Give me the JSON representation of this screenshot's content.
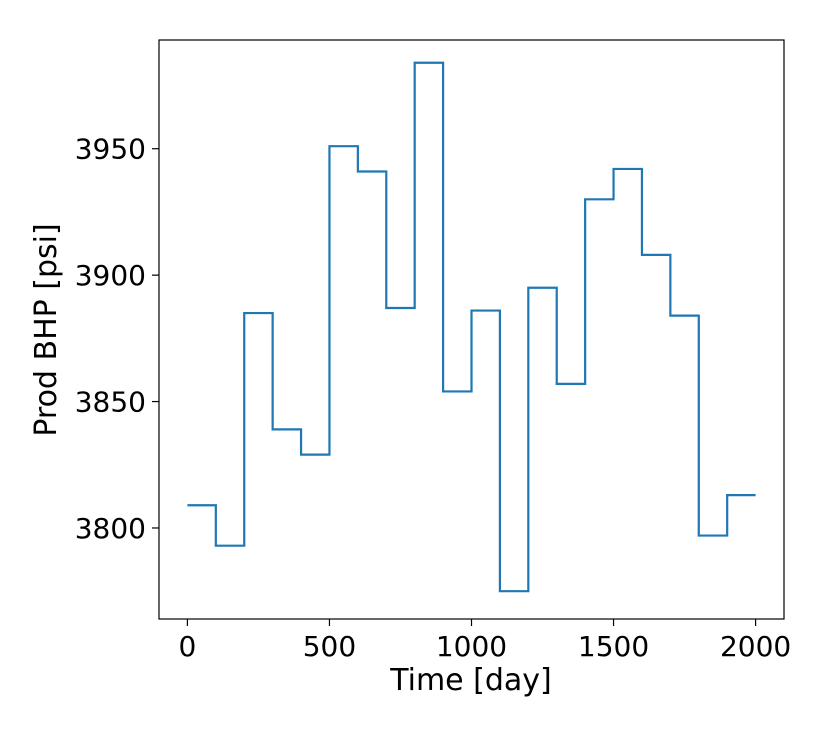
{
  "chart_data": {
    "type": "line",
    "drawstyle": "steps-post",
    "title": "",
    "xlabel": "Time [day]",
    "ylabel": "Prod BHP [psi]",
    "xlim": [
      -100,
      2100
    ],
    "ylim": [
      3764,
      3993
    ],
    "xticks": [
      0,
      500,
      1000,
      1500,
      2000
    ],
    "yticks": [
      3800,
      3850,
      3900,
      3950
    ],
    "grid": false,
    "legend": "none",
    "series": [
      {
        "color": "#1f77b4",
        "x": [
          0,
          100,
          200,
          300,
          400,
          500,
          600,
          700,
          800,
          900,
          1000,
          1100,
          1200,
          1300,
          1400,
          1500,
          1600,
          1700,
          1800,
          1900,
          2000
        ],
        "y": [
          3809,
          3793,
          3885,
          3839,
          3829,
          3951,
          3941,
          3887,
          3984,
          3854,
          3886,
          3775,
          3895,
          3857,
          3930,
          3942,
          3908,
          3884,
          3797,
          3813,
          3813
        ]
      }
    ]
  }
}
